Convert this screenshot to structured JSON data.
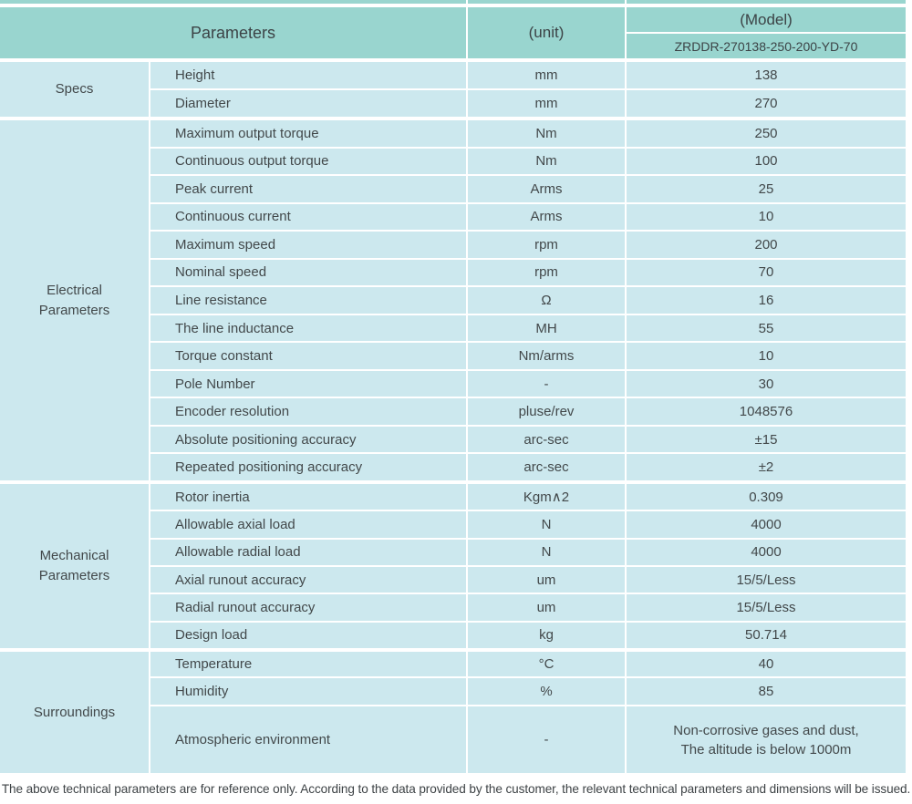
{
  "colors": {
    "header_teal": "#99d5cf",
    "cell_blue": "#cce8ee",
    "text": "#42484a",
    "divider": "#ffffff"
  },
  "header": {
    "parameters_label": "Parameters",
    "unit_label": "(unit)",
    "model_label": "(Model)",
    "model_value": "ZRDDR-270138-250-200-YD-70"
  },
  "sections": [
    {
      "label": "Specs",
      "rows": [
        {
          "param": "Height",
          "unit": "mm",
          "value": "138"
        },
        {
          "param": "Diameter",
          "unit": "mm",
          "value": "270"
        }
      ]
    },
    {
      "label": "Electrical\nParameters",
      "rows": [
        {
          "param": "Maximum output torque",
          "unit": "Nm",
          "value": "250"
        },
        {
          "param": "Continuous output torque",
          "unit": "Nm",
          "value": "100"
        },
        {
          "param": "Peak current",
          "unit": "Arms",
          "value": "25"
        },
        {
          "param": "Continuous current",
          "unit": "Arms",
          "value": "10"
        },
        {
          "param": "Maximum speed",
          "unit": "rpm",
          "value": "200"
        },
        {
          "param": "Nominal speed",
          "unit": "rpm",
          "value": "70"
        },
        {
          "param": "Line resistance",
          "unit": "Ω",
          "value": "16"
        },
        {
          "param": "The line inductance",
          "unit": "MH",
          "value": "55"
        },
        {
          "param": "Torque constant",
          "unit": "Nm/arms",
          "value": "10"
        },
        {
          "param": "Pole Number",
          "unit": "-",
          "value": "30"
        },
        {
          "param": "Encoder resolution",
          "unit": "pluse/rev",
          "value": "1048576"
        },
        {
          "param": "Absolute positioning accuracy",
          "unit": "arc-sec",
          "value": "±15"
        },
        {
          "param": "Repeated positioning accuracy",
          "unit": "arc-sec",
          "value": "±2"
        }
      ]
    },
    {
      "label": "Mechanical\nParameters",
      "rows": [
        {
          "param": "Rotor inertia",
          "unit": "Kgm∧2",
          "value": "0.309"
        },
        {
          "param": "Allowable axial load",
          "unit": "N",
          "value": "4000"
        },
        {
          "param": "Allowable radial load",
          "unit": "N",
          "value": "4000"
        },
        {
          "param": "Axial runout accuracy",
          "unit": "um",
          "value": "15/5/Less"
        },
        {
          "param": "Radial runout accuracy",
          "unit": "um",
          "value": "15/5/Less"
        },
        {
          "param": "Design load",
          "unit": "kg",
          "value": "50.714"
        }
      ]
    },
    {
      "label": "Surroundings",
      "rows": [
        {
          "param": "Temperature",
          "unit": "°C",
          "value": "40"
        },
        {
          "param": "Humidity",
          "unit": "%",
          "value": "85"
        },
        {
          "param": "Atmospheric environment",
          "unit": "-",
          "value": "Non-corrosive gases and dust,\nThe altitude is below 1000m"
        }
      ]
    }
  ],
  "footer_note": "The above technical parameters are for reference only. According to the data provided by the customer, the relevant technical parameters and dimensions will be issued."
}
